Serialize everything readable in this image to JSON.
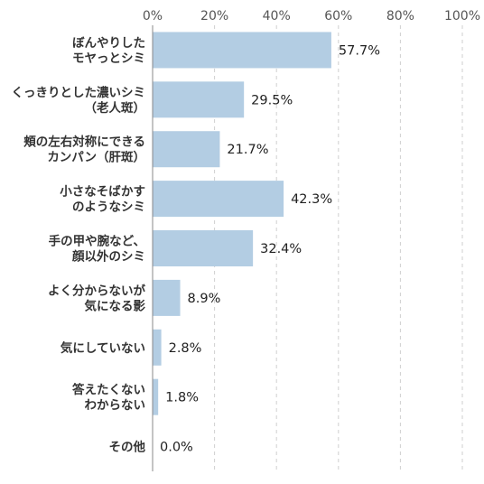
{
  "chart_data": {
    "type": "bar",
    "orientation": "horizontal",
    "title": "",
    "xlabel": "",
    "ylabel": "",
    "xlim": [
      0,
      100
    ],
    "ticks": [
      "0%",
      "20%",
      "40%",
      "60%",
      "80%",
      "100%"
    ],
    "tick_values": [
      0,
      20,
      40,
      60,
      80,
      100
    ],
    "grid": true,
    "categories": [
      [
        "ぼんやりした",
        "モヤっとシミ"
      ],
      [
        "くっきりとした濃いシミ",
        "（老人斑）"
      ],
      [
        "頬の左右対称にできる",
        "カンパン（肝斑）"
      ],
      [
        "小さなそばかす",
        "のようなシミ"
      ],
      [
        "手の甲や腕など、",
        "顔以外のシミ"
      ],
      [
        "よく分からないが",
        "気になる影"
      ],
      [
        "気にしていない"
      ],
      [
        "答えたくない",
        "わからない"
      ],
      [
        "その他"
      ]
    ],
    "values": [
      57.7,
      29.5,
      21.7,
      42.3,
      32.4,
      8.9,
      2.8,
      1.8,
      0.0
    ],
    "value_labels": [
      "57.7%",
      "29.5%",
      "21.7%",
      "42.3%",
      "32.4%",
      "8.9%",
      "2.8%",
      "1.8%",
      "0.0%"
    ],
    "bar_color": "#b3cde3"
  }
}
